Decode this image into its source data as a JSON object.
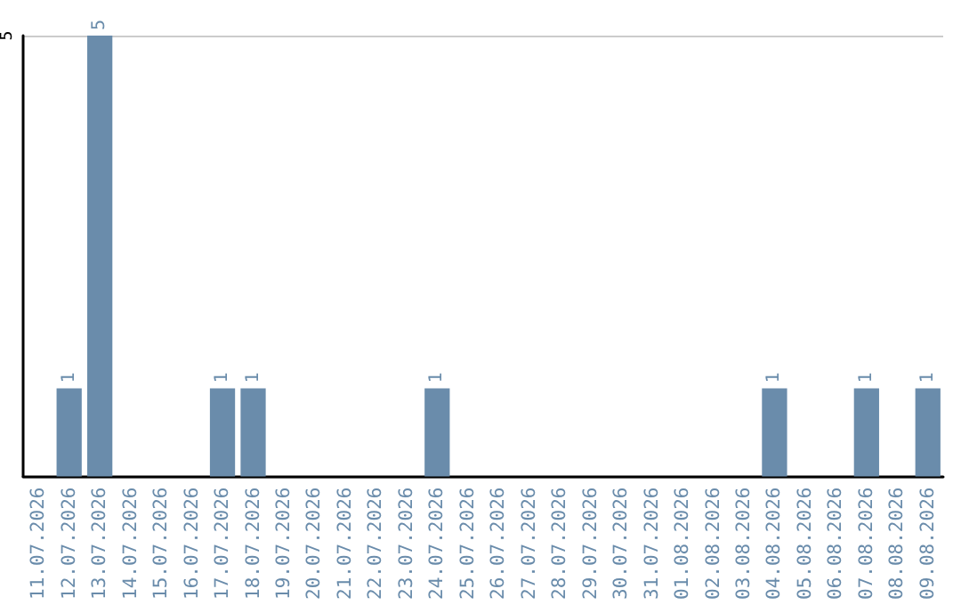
{
  "chart_data": {
    "type": "bar",
    "categories": [
      "11.07.2026",
      "12.07.2026",
      "13.07.2026",
      "14.07.2026",
      "15.07.2026",
      "16.07.2026",
      "17.07.2026",
      "18.07.2026",
      "19.07.2026",
      "20.07.2026",
      "21.07.2026",
      "22.07.2026",
      "23.07.2026",
      "24.07.2026",
      "25.07.2026",
      "26.07.2026",
      "27.07.2026",
      "28.07.2026",
      "29.07.2026",
      "30.07.2026",
      "31.07.2026",
      "01.08.2026",
      "02.08.2026",
      "03.08.2026",
      "04.08.2026",
      "05.08.2026",
      "06.08.2026",
      "07.08.2026",
      "08.08.2026",
      "09.08.2026"
    ],
    "values": [
      0,
      1,
      5,
      0,
      0,
      0,
      1,
      1,
      0,
      0,
      0,
      0,
      0,
      1,
      0,
      0,
      0,
      0,
      0,
      0,
      0,
      0,
      0,
      0,
      1,
      0,
      0,
      1,
      0,
      1
    ],
    "value_labels": [
      null,
      "1",
      "5",
      null,
      null,
      null,
      "1",
      "1",
      null,
      null,
      null,
      null,
      null,
      "1",
      null,
      null,
      null,
      null,
      null,
      null,
      null,
      null,
      null,
      null,
      "1",
      null,
      null,
      "1",
      null,
      "1"
    ],
    "color": "#6a8cab",
    "ylim": [
      0,
      5
    ],
    "yticks": [
      {
        "value": 0,
        "label": null
      },
      5
    ],
    "grid": "y"
  }
}
